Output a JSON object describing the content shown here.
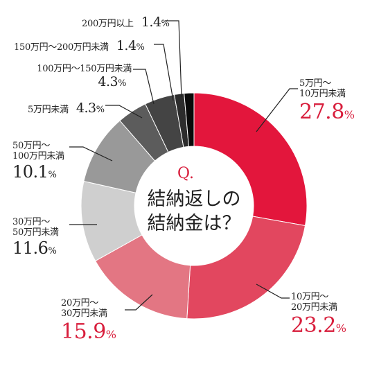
{
  "chart_data": {
    "type": "pie",
    "center_title": {
      "q": "Q.",
      "text": "結納返しの\n結納金は？"
    },
    "slices": [
      {
        "category": "5万円～\n10万円未満",
        "value": 27.8,
        "color": "#e3163c"
      },
      {
        "category": "10万円～\n20万円未満",
        "value": 23.2,
        "color": "#e2475f"
      },
      {
        "category": "20万円～\n30万円未満",
        "value": 15.9,
        "color": "#e37683"
      },
      {
        "category": "30万円～\n50万円未満",
        "value": 11.6,
        "color": "#cfcfcf"
      },
      {
        "category": "50万円～\n100万円未満",
        "value": 10.1,
        "color": "#999999"
      },
      {
        "category": "5万円未満",
        "value": 4.3,
        "color": "#5c5c5c"
      },
      {
        "category": "100万円～150万円未満",
        "value": 4.3,
        "color": "#444444"
      },
      {
        "category": "150万円～200万円未満",
        "value": 1.4,
        "color": "#2c2c2c"
      },
      {
        "category": "200万円以上",
        "value": 1.4,
        "color": "#0a0a0a"
      }
    ],
    "unit": "%"
  }
}
